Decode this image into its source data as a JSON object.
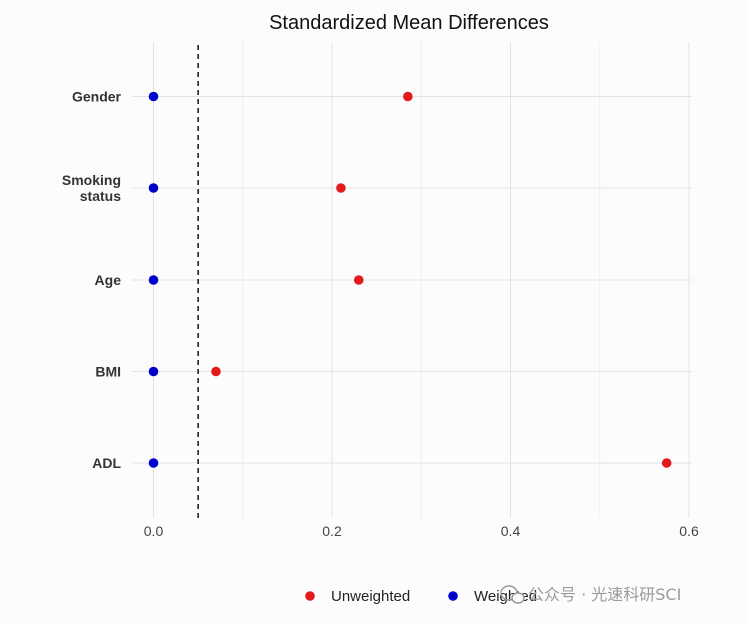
{
  "chart_data": {
    "type": "scatter",
    "title": "Standardized Mean Differences",
    "xlabel": "",
    "ylabel": "",
    "categories": [
      "Gender",
      "Smoking\nstatus",
      "Age",
      "BMI",
      "ADL"
    ],
    "series": [
      {
        "name": "Unweighted",
        "color": "#e31a1c",
        "values": [
          0.285,
          0.21,
          0.23,
          0.07,
          0.575
        ]
      },
      {
        "name": "Weighted",
        "color": "#0000cc",
        "values": [
          0.0,
          0.0,
          0.0,
          0.0,
          0.0
        ]
      }
    ],
    "xlim": [
      -0.01,
      0.6
    ],
    "xticks": [
      0.0,
      0.2,
      0.4,
      0.6
    ],
    "xtick_labels": [
      "0.0",
      "0.2",
      "0.4",
      "0.6"
    ],
    "threshold_line": {
      "x": 0.05,
      "style": "dashed",
      "color": "#000000"
    },
    "grid": true,
    "legend_position": "bottom",
    "watermark": "公众号 · 光速科研SCI"
  }
}
